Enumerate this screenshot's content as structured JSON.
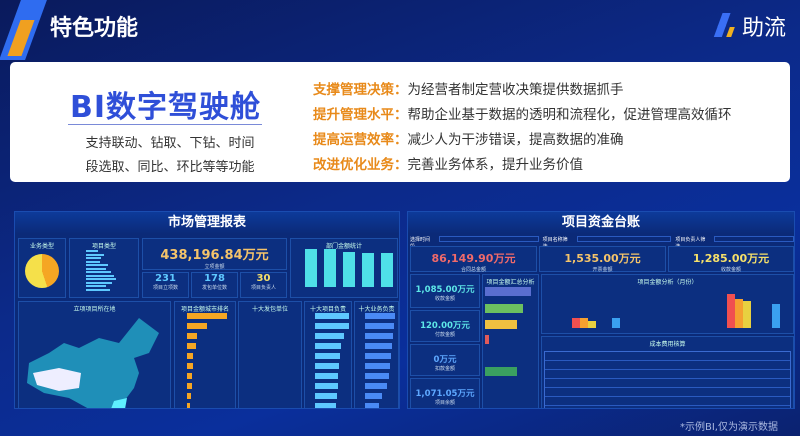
{
  "header": {
    "title": "特色功能",
    "brand": "助流"
  },
  "card": {
    "title": "BI数字驾驶舱",
    "subtitle_lines": [
      "支持联动、钻取、下钻、时间",
      "段选取、同比、环比等等功能"
    ],
    "features": [
      {
        "key": "支撑管理决策：",
        "text": "为经营者制定营收决策提供数据抓手"
      },
      {
        "key": "提升管理水平：",
        "text": "帮助企业基于数据的透明和流程化，促进管理高效循环"
      },
      {
        "key": "提高运营效率：",
        "text": "减少人为干涉错误，提高数据的准确"
      },
      {
        "key": "改进优化业务：",
        "text": "完善业务体系，提升业务价值"
      }
    ]
  },
  "left_dash": {
    "title": "市场管理报表",
    "biz_type": "业务类型",
    "proj_type": "项目类型",
    "total": "438,196.84万元",
    "total_label": "立项金额",
    "kpis": [
      {
        "value": "231",
        "label": "项目立项数",
        "color": "#5ec8ff"
      },
      {
        "value": "178",
        "label": "发包单位数",
        "color": "#5ec8ff"
      },
      {
        "value": "30",
        "label": "项目负责人",
        "color": "#f5d66a"
      }
    ],
    "dept": "部门金额统计",
    "map": "立项项目所在地",
    "city_rank": "项目金额城市排名",
    "top_clients": "十大发包单位",
    "top_pm": "十大项目负责",
    "top_biz": "十大业务负责"
  },
  "right_dash": {
    "title": "项目资金台账",
    "filters": [
      "选择时间段",
      "项目名称筛选",
      "项目负责人筛选"
    ],
    "top": [
      {
        "value": "86,149.90万元",
        "label": "合同总金额",
        "color": "#f06a6a"
      },
      {
        "value": "1,535.00万元",
        "label": "开票金额",
        "color": "#f5c46a"
      },
      {
        "value": "1,285.00万元",
        "label": "收款金额",
        "color": "#f5e06a"
      }
    ],
    "side": [
      {
        "value": "1,085.00万元",
        "label": "收款金额"
      },
      {
        "value": "120.00万元",
        "label": "付款金额"
      },
      {
        "value": "0万元",
        "label": "扣款金额"
      },
      {
        "value": "1,071.05万元",
        "label": "项目余额"
      }
    ],
    "summary": "项目金额汇总分析",
    "monthly": "项目金额分析（月份）",
    "cost": "成本费用核算"
  },
  "footer": "*示例BI,仅为演示数据"
}
